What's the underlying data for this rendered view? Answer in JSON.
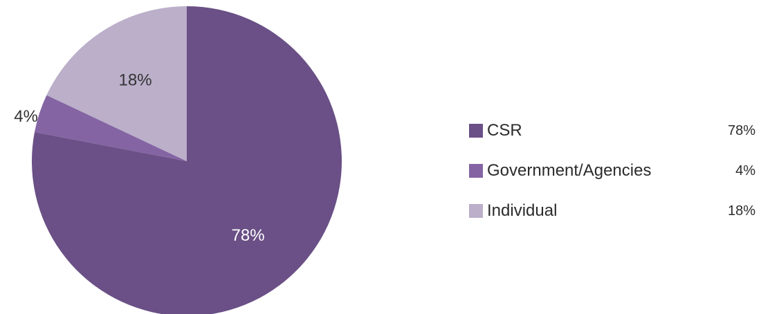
{
  "chart_data": {
    "type": "pie",
    "title": "",
    "slices": [
      {
        "label": "CSR",
        "value": 78,
        "display": "78%",
        "color": "#6a5086"
      },
      {
        "label": "Government/Agencies",
        "value": 4,
        "display": "4%",
        "color": "#8464a3"
      },
      {
        "label": "Individual",
        "value": 18,
        "display": "18%",
        "color": "#bbafca"
      }
    ],
    "legend_placement": "right",
    "start_angle": "12 o'clock, clockwise"
  },
  "legend": {
    "items": [
      {
        "label": "CSR",
        "value": "78%"
      },
      {
        "label": "Government/Agencies",
        "value": "4%"
      },
      {
        "label": "Individual",
        "value": "18%"
      }
    ]
  }
}
